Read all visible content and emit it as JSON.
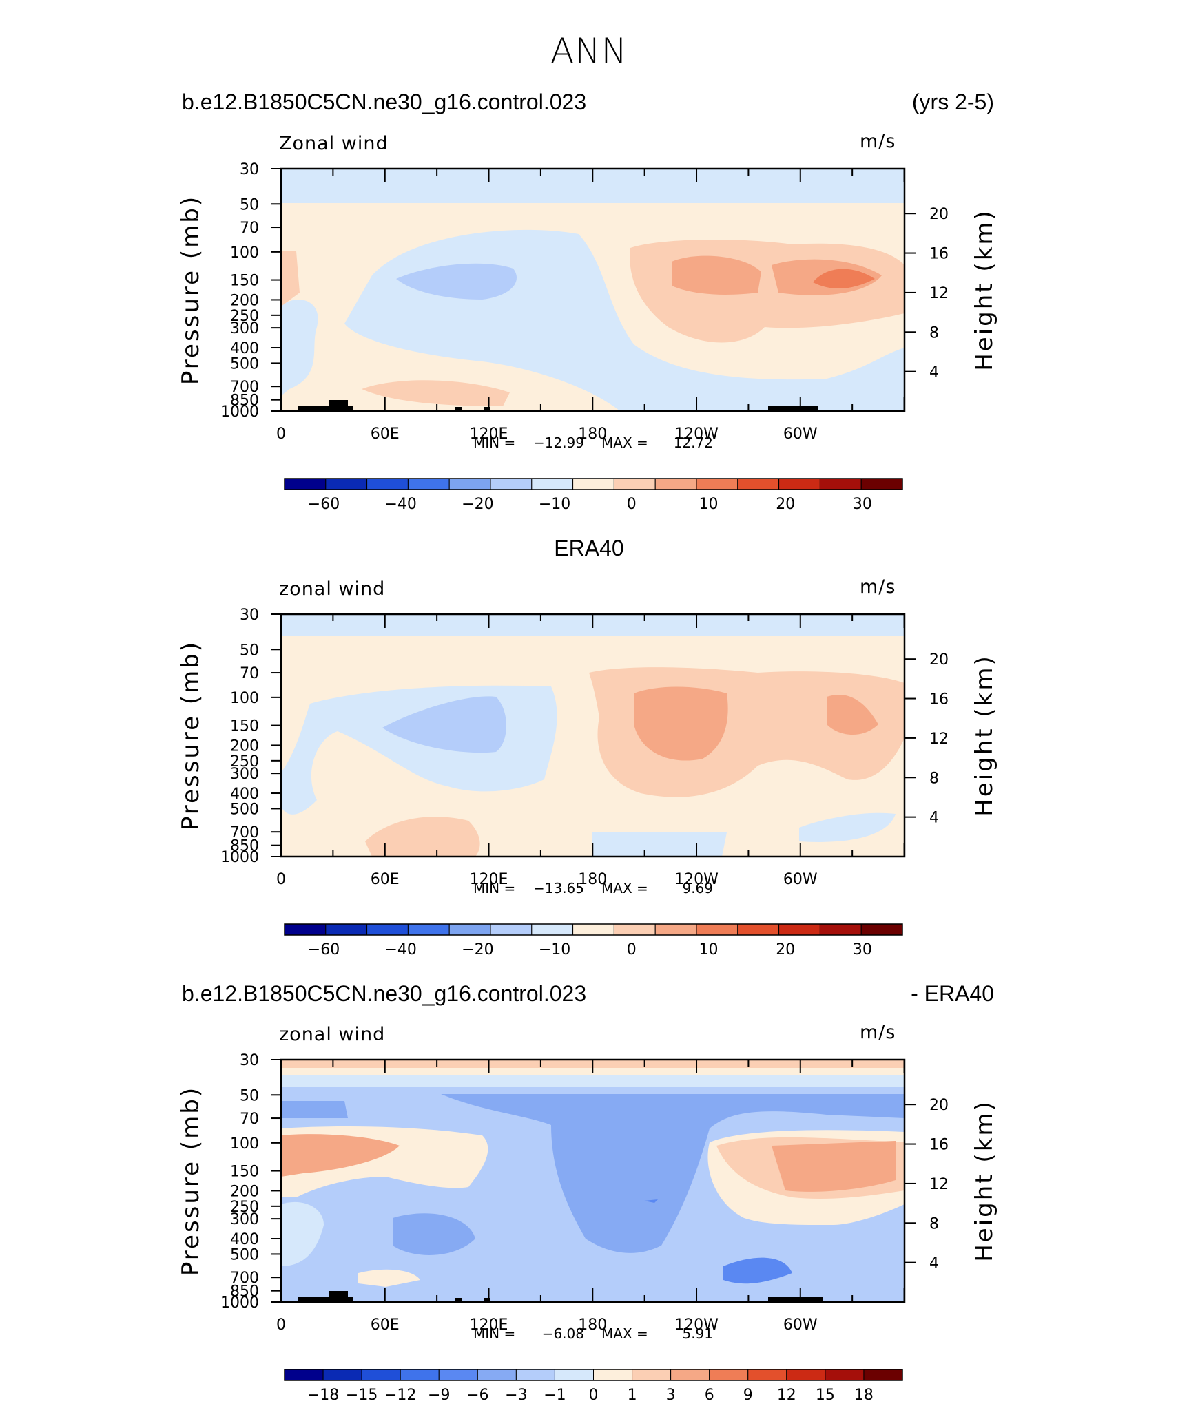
{
  "figure_title": "ANN",
  "panels": [
    {
      "header_left": "b.e12.B1850C5CN.ne30_g16.control.023",
      "header_right": "(yrs 2-5)",
      "var_label": "Zonal wind",
      "units": "m/s",
      "min_label": "MIN =",
      "min_value": "−12.99",
      "max_label": "MAX =",
      "max_value": "12.72",
      "colorbar_labels": [
        "−60",
        "−40",
        "−20",
        "−10",
        "0",
        "10",
        "20",
        "30"
      ]
    },
    {
      "header_left": "",
      "header_center": "ERA40",
      "header_right": "",
      "var_label": "zonal wind",
      "units": "m/s",
      "min_label": "MIN =",
      "min_value": "−13.65",
      "max_label": "MAX =",
      "max_value": "9.69",
      "colorbar_labels": [
        "−60",
        "−40",
        "−20",
        "−10",
        "0",
        "10",
        "20",
        "30"
      ]
    },
    {
      "header_left": "b.e12.B1850C5CN.ne30_g16.control.023",
      "header_right": "- ERA40",
      "var_label": "zonal wind",
      "units": "m/s",
      "min_label": "MIN =",
      "min_value": "−6.08",
      "max_label": "MAX =",
      "max_value": "5.91",
      "colorbar_labels": [
        "−18",
        "−15",
        "−12",
        "−9",
        "−6",
        "−3",
        "−1",
        "0",
        "1",
        "3",
        "6",
        "9",
        "12",
        "15",
        "18"
      ]
    }
  ],
  "axes": {
    "x_ticks": [
      "0",
      "60E",
      "120E",
      "180",
      "120W",
      "60W"
    ],
    "y_ticks_pressure": [
      "30",
      "50",
      "70",
      "100",
      "150",
      "200",
      "250",
      "300",
      "400",
      "500",
      "700",
      "850",
      "1000"
    ],
    "y_ticks_height": [
      "20",
      "16",
      "12",
      "8",
      "4"
    ],
    "ylabel_left": "Pressure (mb)",
    "ylabel_right": "Height (km)"
  },
  "colors": {
    "full_field_scale": [
      "#00008c",
      "#0a2ab4",
      "#1f4fd8",
      "#3f73eb",
      "#7da4f0",
      "#b4cdfa",
      "#d6e8fb",
      "#fdefdc",
      "#fbcfb4",
      "#f5a886",
      "#ef7d56",
      "#e3502c",
      "#cc2a14",
      "#a50f0a",
      "#6b0000"
    ],
    "difference_scale": [
      "#00008c",
      "#0a2ab4",
      "#1f4fd8",
      "#3f73eb",
      "#5a88f2",
      "#86aaf3",
      "#b4cdfa",
      "#d6e8fb",
      "#fdefdc",
      "#fbcfb4",
      "#f5a886",
      "#ef7d56",
      "#e3502c",
      "#cc2a14",
      "#a50f0a",
      "#6b0000"
    ]
  },
  "chart_data": {
    "type": "heatmap",
    "description_source": "zonal-mean longitude-pressure cross sections of zonal wind (m/s)",
    "x": [
      "0",
      "60E",
      "120E",
      "180",
      "120W",
      "60W"
    ],
    "y": [
      "30",
      "50",
      "70",
      "100",
      "150",
      "200",
      "250",
      "300",
      "400",
      "500",
      "700",
      "850",
      "1000"
    ],
    "panels": [
      {
        "name": "b.e12.B1850C5CN.ne30_g16.control.023",
        "min": -12.99,
        "max": 12.72
      },
      {
        "name": "ERA40",
        "min": -13.65,
        "max": 9.69
      },
      {
        "name": "b.e12.B1850C5CN.ne30_g16.control.023 - ERA40",
        "min": -6.08,
        "max": 5.91
      }
    ]
  }
}
